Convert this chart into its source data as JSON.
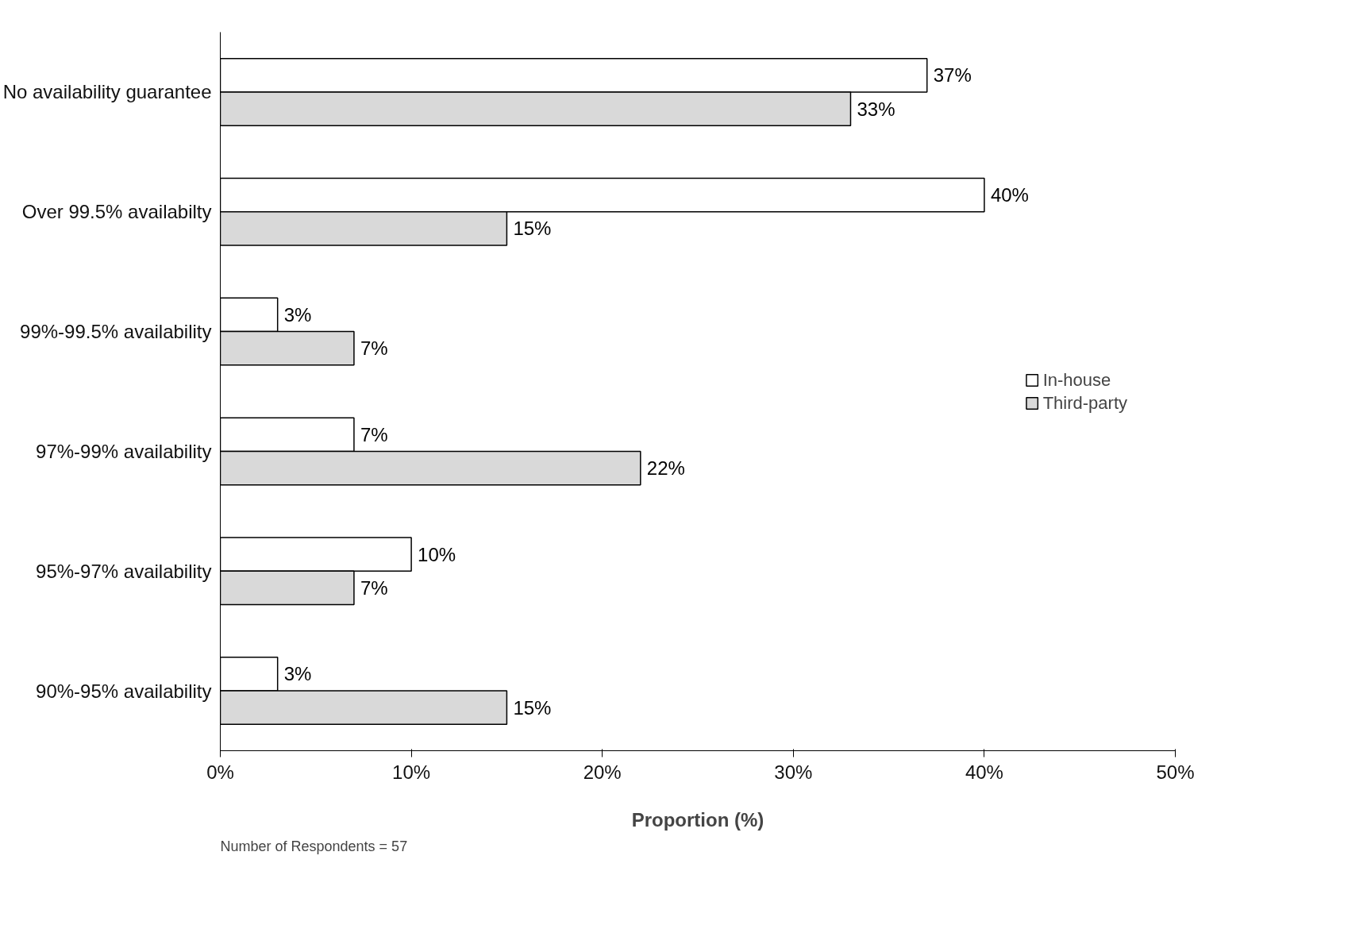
{
  "chart_data": {
    "type": "bar",
    "orientation": "horizontal",
    "categories": [
      "No availability guarantee",
      "Over 99.5% availabilty",
      "99%-99.5% availability",
      "97%-99% availability",
      "95%-97% availability",
      "90%-95% availability"
    ],
    "series": [
      {
        "name": "In-house",
        "color": "#ffffff",
        "values": [
          37,
          40,
          3,
          7,
          10,
          3
        ],
        "value_labels": [
          "37%",
          "40%",
          "3%",
          "7%",
          "10%",
          "3%"
        ]
      },
      {
        "name": "Third-party",
        "color": "#d9d9d9",
        "values": [
          33,
          15,
          7,
          22,
          7,
          15
        ],
        "value_labels": [
          "33%",
          "15%",
          "7%",
          "22%",
          "7%",
          "15%"
        ]
      }
    ],
    "xlim": [
      0,
      50
    ],
    "xticks": [
      {
        "value": 0,
        "label": "0%"
      },
      {
        "value": 10,
        "label": "10%"
      },
      {
        "value": 20,
        "label": "20%"
      },
      {
        "value": 30,
        "label": "30%"
      },
      {
        "value": 40,
        "label": "40%"
      },
      {
        "value": 50,
        "label": "50%"
      }
    ],
    "xlabel": "Proportion (%)",
    "annotations": [
      "Number of Respondents = 57"
    ],
    "legend": "right",
    "grid": false
  }
}
